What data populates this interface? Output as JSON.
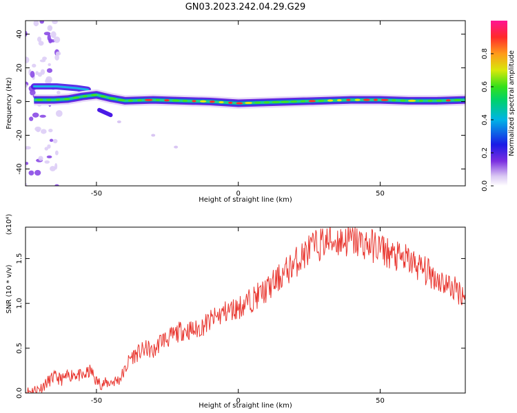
{
  "title": "GN03.2023.242.04.29.G29",
  "chart_data": [
    {
      "type": "heatmap",
      "xlabel": "Height of straight line (km)",
      "ylabel": "Frequency (Hz)",
      "xlim": [
        -75,
        80
      ],
      "ylim": [
        -50,
        48
      ],
      "xticks": [
        -50,
        0,
        50
      ],
      "yticks": [
        -40,
        -20,
        0,
        20,
        40
      ],
      "colorbar": {
        "label": "Normalized spectral amplitude",
        "range": [
          0,
          1
        ],
        "ticks": [
          0.0,
          0.2,
          0.4,
          0.6,
          0.8
        ]
      },
      "ridge": {
        "description_points_x": [
          -72,
          -65,
          -60,
          -55,
          -50,
          -45,
          -40,
          -30,
          -20,
          -10,
          0,
          10,
          20,
          30,
          40,
          50,
          60,
          70,
          80
        ],
        "description_points_y": [
          1,
          1,
          1.5,
          3,
          4,
          2,
          0.5,
          1,
          0.5,
          0,
          -1,
          -0.5,
          0,
          0.5,
          1,
          1,
          0.5,
          0.5,
          1
        ]
      },
      "upper_band": {
        "x": [
          -72,
          -64,
          -57,
          -53
        ],
        "y": [
          9,
          9,
          8,
          7
        ]
      },
      "lower_blob": {
        "x": [
          -49,
          -45
        ],
        "y": [
          -5,
          -8
        ]
      },
      "faint_trail": {
        "x": [
          -42,
          -30,
          -22
        ],
        "y": [
          -12,
          -20,
          -27
        ]
      }
    },
    {
      "type": "line",
      "xlabel": "Height of straight line (km)",
      "ylabel": "SNR (10 * v/v)",
      "yscale_label": "(x10⁴)",
      "xlim": [
        -75,
        80
      ],
      "ylim": [
        0,
        1.85
      ],
      "xticks": [
        -50,
        0,
        50
      ],
      "yticks": [
        0.0,
        0.5,
        1.0,
        1.5
      ],
      "color": "#e8352e",
      "series": [
        {
          "x": [
            -75,
            -70,
            -65,
            -62,
            -58,
            -55,
            -52,
            -50,
            -48,
            -45,
            -42,
            -40,
            -38,
            -35,
            -32,
            -30,
            -27,
            -25,
            -20,
            -15,
            -10,
            -5,
            0,
            5,
            10,
            15,
            20,
            25,
            30,
            35,
            40,
            45,
            50,
            55,
            60,
            65,
            70,
            75,
            80
          ],
          "values": [
            0.01,
            0.05,
            0.18,
            0.15,
            0.22,
            0.18,
            0.25,
            0.13,
            0.1,
            0.12,
            0.15,
            0.25,
            0.4,
            0.45,
            0.5,
            0.45,
            0.6,
            0.6,
            0.7,
            0.7,
            0.8,
            0.9,
            0.95,
            1.05,
            1.15,
            1.3,
            1.45,
            1.6,
            1.68,
            1.7,
            1.7,
            1.66,
            1.62,
            1.52,
            1.48,
            1.38,
            1.28,
            1.18,
            1.1
          ]
        }
      ]
    }
  ]
}
